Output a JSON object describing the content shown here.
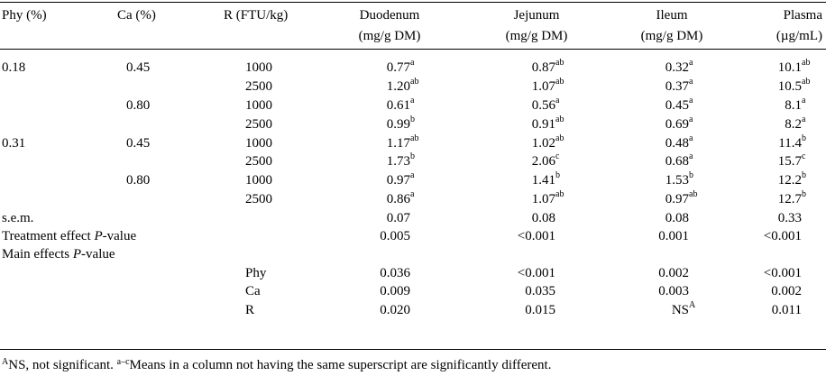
{
  "header": [
    [
      "Phy (%)"
    ],
    [
      "Ca (%)"
    ],
    [
      "R (FTU/kg)"
    ],
    [
      "Duodenum",
      "(mg/g DM)"
    ],
    [
      "Jejunum",
      "(mg/g DM)"
    ],
    [
      "Ileum",
      "(mg/g DM)"
    ],
    [
      "Plasma",
      "(µg/mL)"
    ]
  ],
  "rows": [
    [
      "0.18",
      "0.45",
      "1000",
      {
        "text": "0.77",
        "sup": "a"
      },
      {
        "text": "0.87",
        "sup": "ab"
      },
      {
        "text": "0.32",
        "sup": "a"
      },
      {
        "text": "10.1",
        "sup": "ab"
      }
    ],
    [
      null,
      null,
      "2500",
      {
        "text": "1.20",
        "sup": "ab"
      },
      {
        "text": "1.07",
        "sup": "ab"
      },
      {
        "text": "0.37",
        "sup": "a"
      },
      {
        "text": "10.5",
        "sup": "ab"
      }
    ],
    [
      null,
      "0.80",
      "1000",
      {
        "text": "0.61",
        "sup": "a"
      },
      {
        "text": "0.56",
        "sup": "a"
      },
      {
        "text": "0.45",
        "sup": "a"
      },
      {
        "text": "8.1",
        "sup": "a"
      }
    ],
    [
      null,
      null,
      "2500",
      {
        "text": "0.99",
        "sup": "b"
      },
      {
        "text": "0.91",
        "sup": "ab"
      },
      {
        "text": "0.69",
        "sup": "a"
      },
      {
        "text": "8.2",
        "sup": "a"
      }
    ],
    [
      "0.31",
      "0.45",
      "1000",
      {
        "text": "1.17",
        "sup": "ab"
      },
      {
        "text": "1.02",
        "sup": "ab"
      },
      {
        "text": "0.48",
        "sup": "a"
      },
      {
        "text": "11.4",
        "sup": "b"
      }
    ],
    [
      null,
      null,
      "2500",
      {
        "text": "1.73",
        "sup": "b"
      },
      {
        "text": "2.06",
        "sup": "c"
      },
      {
        "text": "0.68",
        "sup": "a"
      },
      {
        "text": "15.7",
        "sup": "c"
      }
    ],
    [
      null,
      "0.80",
      "1000",
      {
        "text": "0.97",
        "sup": "a"
      },
      {
        "text": "1.41",
        "sup": "b"
      },
      {
        "text": "1.53",
        "sup": "b"
      },
      {
        "text": "12.2",
        "sup": "b"
      }
    ],
    [
      null,
      null,
      "2500",
      {
        "text": "0.86",
        "sup": "a"
      },
      {
        "text": "1.07",
        "sup": "ab"
      },
      {
        "text": "0.97",
        "sup": "ab"
      },
      {
        "text": "12.7",
        "sup": "b"
      }
    ],
    [
      "s.e.m.",
      null,
      null,
      "0.07",
      "0.08",
      "0.08",
      "0.33"
    ],
    [
      [
        {
          "text": "Treatment effect "
        },
        {
          "italic": "P"
        },
        {
          "text": "-value"
        }
      ],
      null,
      null,
      "0.005",
      "<0.001",
      "0.001",
      "<0.001"
    ],
    [
      [
        {
          "text": "Main effects "
        },
        {
          "italic": "P"
        },
        {
          "text": "-value"
        }
      ],
      null,
      null,
      null,
      null,
      null,
      null
    ],
    [
      null,
      null,
      "Phy",
      "0.036",
      "<0.001",
      "0.002",
      "<0.001"
    ],
    [
      null,
      null,
      "Ca",
      "0.009",
      "0.035",
      "0.003",
      "0.002"
    ],
    [
      null,
      null,
      "R",
      "0.020",
      "0.015",
      {
        "text": "NS",
        "sup": "A"
      },
      "0.011"
    ]
  ],
  "footnote": [
    {
      "sup": "A"
    },
    {
      "text": "NS, not significant. "
    },
    {
      "sup": "a–c"
    },
    {
      "text": "Means in a column not having the same superscript are significantly different."
    }
  ]
}
